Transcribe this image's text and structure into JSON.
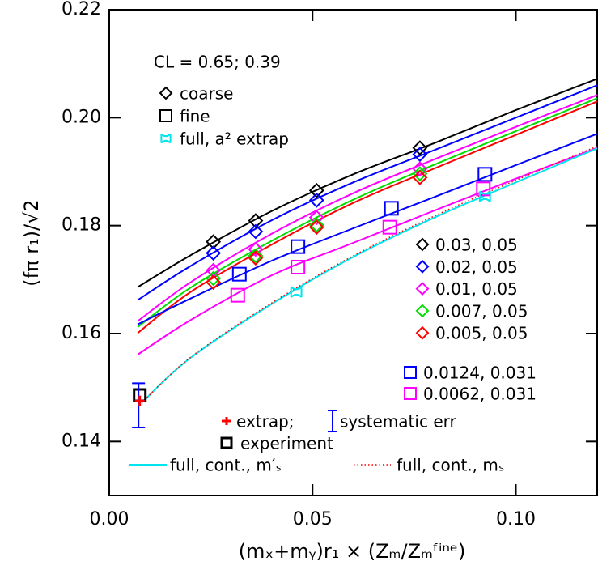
{
  "chart_data": {
    "type": "scatter",
    "xlabel": "(mₓ+mᵧ)r₁ × (Zₘ/Zₘᶠⁱⁿᵉ)",
    "ylabel": "(fπ r₁)/√2",
    "xlim": [
      0,
      0.12
    ],
    "ylim": [
      0.13,
      0.22
    ],
    "xticks": [
      {
        "value": 0,
        "label": "0.00"
      },
      0.05,
      {
        "value": 0.1,
        "label": "0.10"
      }
    ],
    "yticks": [
      0.14,
      0.16,
      0.18,
      {
        "value": 0.2,
        "label": "0.20"
      },
      0.22
    ],
    "annotation": "CL = 0.65; 0.39",
    "marker_legend": [
      {
        "label": "coarse",
        "marker": "diamond"
      },
      {
        "label": "fine",
        "marker": "square"
      }
    ],
    "series": [
      {
        "name": "0.03, 0.05",
        "color": "#000000",
        "marker": "diamond",
        "x": [
          0.0256,
          0.036,
          0.051,
          0.0764
        ],
        "values": [
          0.177,
          0.1809,
          0.1865,
          0.1944
        ],
        "fit": {
          "x": [
            0.007,
            0.02,
            0.04,
            0.06,
            0.08,
            0.1,
            0.12
          ],
          "values": [
            0.1686,
            0.1745,
            0.1827,
            0.1895,
            0.1953,
            0.2014,
            0.2072
          ]
        }
      },
      {
        "name": "0.02, 0.05",
        "color": "#0000ff",
        "marker": "diamond",
        "x": [
          0.0256,
          0.036,
          0.051,
          0.0764
        ],
        "values": [
          0.1749,
          0.1789,
          0.1847,
          0.1932
        ],
        "fit": {
          "x": [
            0.007,
            0.02,
            0.04,
            0.06,
            0.08,
            0.1,
            0.12
          ],
          "values": [
            0.1662,
            0.1725,
            0.181,
            0.188,
            0.194,
            0.2,
            0.206
          ]
        }
      },
      {
        "name": "0.01, 0.05",
        "color": "#ff00ff",
        "marker": "diamond",
        "x": [
          0.0256,
          0.036,
          0.051,
          0.0764
        ],
        "values": [
          0.1717,
          0.1756,
          0.1815,
          0.1905
        ],
        "fit": {
          "x": [
            0.007,
            0.02,
            0.04,
            0.06,
            0.08,
            0.1,
            0.12
          ],
          "values": [
            0.1623,
            0.1695,
            0.1785,
            0.186,
            0.1923,
            0.1983,
            0.2042
          ]
        }
      },
      {
        "name": "0.007, 0.05",
        "color": "#00dd00",
        "marker": "diamond",
        "x": [
          0.0256,
          0.036,
          0.051,
          0.0764
        ],
        "values": [
          0.1702,
          0.1744,
          0.1801,
          0.1896
        ],
        "fit": {
          "x": [
            0.007,
            0.02,
            0.04,
            0.06,
            0.08,
            0.1,
            0.12
          ],
          "values": [
            0.1612,
            0.1685,
            0.1772,
            0.1848,
            0.1913,
            0.1975,
            0.2036
          ]
        }
      },
      {
        "name": "0.005, 0.05",
        "color": "#ff0000",
        "marker": "diamond",
        "x": [
          0.0256,
          0.036,
          0.051,
          0.0764
        ],
        "values": [
          0.1695,
          0.174,
          0.1797,
          0.1889
        ],
        "fit": {
          "x": [
            0.007,
            0.02,
            0.04,
            0.06,
            0.08,
            0.1,
            0.12
          ],
          "values": [
            0.1601,
            0.1677,
            0.1765,
            0.1842,
            0.1906,
            0.1968,
            0.203
          ]
        }
      },
      {
        "name": "0.0124, 0.031",
        "color": "#0000ff",
        "marker": "square",
        "x": [
          0.032,
          0.0464,
          0.0694,
          0.0924
        ],
        "values": [
          0.171,
          0.1761,
          0.1832,
          0.1895
        ],
        "fit": {
          "x": [
            0.007,
            0.02,
            0.04,
            0.06,
            0.08,
            0.1,
            0.12
          ],
          "values": [
            0.1617,
            0.1665,
            0.1735,
            0.1795,
            0.1853,
            0.1912,
            0.197
          ]
        }
      },
      {
        "name": "0.0062, 0.031",
        "color": "#ff00ff",
        "marker": "square",
        "x": [
          0.0316,
          0.0464,
          0.069,
          0.092
        ],
        "values": [
          0.1671,
          0.1723,
          0.1797,
          0.1868
        ],
        "fit": {
          "x": [
            0.007,
            0.02,
            0.04,
            0.06,
            0.08,
            0.1,
            0.12
          ],
          "values": [
            0.1561,
            0.1625,
            0.1708,
            0.1768,
            0.1828,
            0.1887,
            0.1944
          ]
        }
      },
      {
        "name": "full, a² extrap",
        "color": "#00e5ee",
        "marker": "star",
        "x": [
          0.046,
          0.0924
        ],
        "values": [
          0.1677,
          0.1854
        ]
      }
    ],
    "curves": [
      {
        "name": "full, cont., m′ₛ",
        "color": "#00e5ee",
        "dash": false,
        "x": [
          0.008,
          0.02,
          0.04,
          0.06,
          0.08,
          0.1,
          0.12
        ],
        "values": [
          0.1472,
          0.1555,
          0.1655,
          0.1742,
          0.1815,
          0.188,
          0.1943
        ]
      },
      {
        "name": "full, cont., mₛ",
        "color": "#ff0000",
        "dash": true,
        "x": [
          0.008,
          0.02,
          0.04,
          0.06,
          0.08,
          0.1,
          0.12
        ],
        "values": [
          0.1472,
          0.1556,
          0.1657,
          0.1744,
          0.1818,
          0.1884,
          0.1947
        ]
      }
    ],
    "extrap": {
      "name": "extrap;",
      "color": "#ff0000",
      "x": 0.0075,
      "value": 0.1475,
      "err": 0.001
    },
    "systematic": {
      "name": "systematic err",
      "color": "#0000ff",
      "x": 0.0072,
      "value": 0.1467,
      "err": 0.0041
    },
    "experiment": {
      "name": "experiment",
      "color": "#000000",
      "x": 0.0075,
      "value": 0.1486
    }
  }
}
